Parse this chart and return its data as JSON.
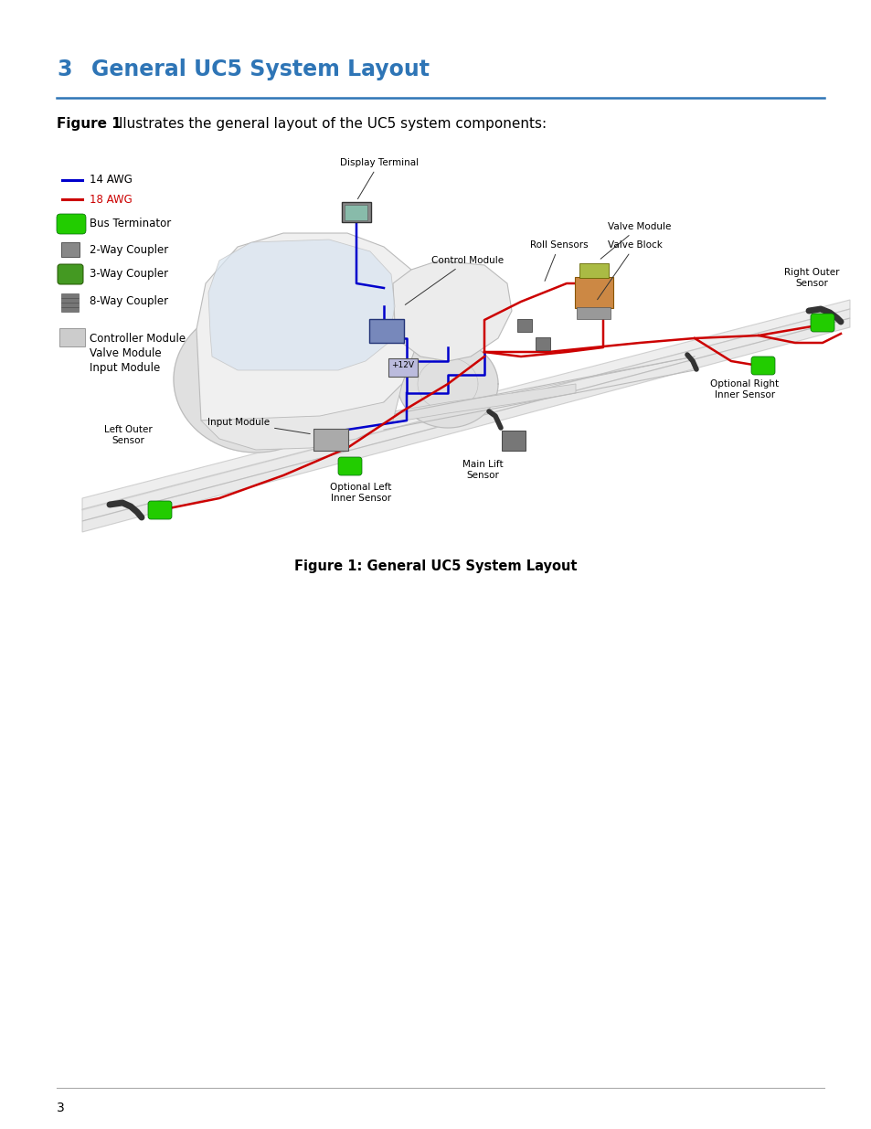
{
  "title_num": "3",
  "title_text": "General UC5 System Layout",
  "title_color": "#2E75B6",
  "title_fontsize": 17,
  "subtitle_bold": "Figure 1",
  "subtitle_rest": " illustrates the general layout of the UC5 system components:",
  "figure_caption": "Figure 1: General UC5 System Layout",
  "page_number": "3",
  "bg_color": "#FFFFFF",
  "blue_wire": "#0000CC",
  "red_wire": "#CC0000",
  "green_color": "#22CC00",
  "green_dark": "#006600",
  "outline_color": "#BBBBBB",
  "label_fs": 7.5,
  "legend_14awg": "14 AWG",
  "legend_18awg": "18 AWG",
  "legend_14awg_color": "#0000AA",
  "legend_18awg_color": "#CC0000",
  "legend_bus": "Bus Terminator",
  "legend_2way": "2-Way Coupler",
  "legend_3way": "3-Way Coupler",
  "legend_8way": "8-Way Coupler",
  "legend_ctrl": "Controller Module\nValve Module\nInput Module"
}
